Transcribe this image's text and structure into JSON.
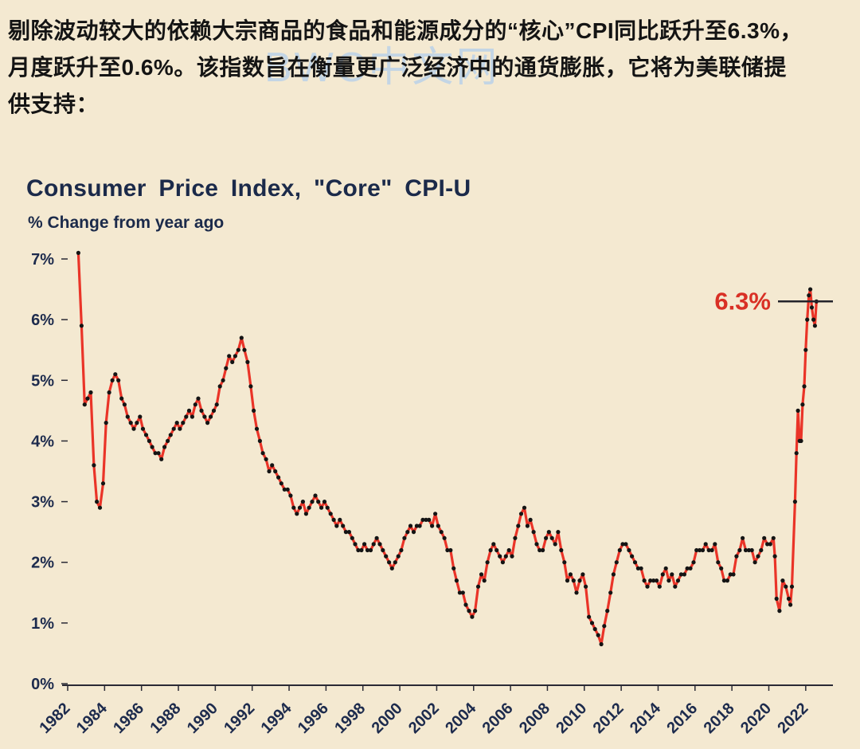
{
  "page": {
    "background": "#f4e9d1"
  },
  "intro": {
    "lines": [
      "剔除波动较大的依赖大宗商品的食品和能源成分的“核心”CPI同比跃升至6.3%，",
      "月度跃升至0.6%。该指数旨在衡量更广泛经济中的通货膨胀，它将为美联储提",
      "供支持："
    ]
  },
  "watermark": {
    "text": "BWC中文网",
    "color": "#a9cbf0"
  },
  "chart_data": {
    "type": "line",
    "title": "Consumer Price Index, \"Core\" CPI-U",
    "subtitle": "% Change from year ago",
    "x_domain": [
      1982,
      2023
    ],
    "ylim": [
      0,
      7
    ],
    "y_ticks": [
      "0%",
      "1%",
      "2%",
      "3%",
      "4%",
      "5%",
      "6%",
      "7%"
    ],
    "x_ticks": [
      1982,
      1984,
      1986,
      1988,
      1990,
      1992,
      1994,
      1996,
      1998,
      2000,
      2002,
      2004,
      2006,
      2008,
      2010,
      2012,
      2014,
      2016,
      2018,
      2020,
      2022
    ],
    "grid": false,
    "legend": "none",
    "line_color": "#ea3428",
    "marker_color": "#141414",
    "axis_color": "#2a2a35",
    "axis_label_color": "#1d2b4d",
    "annotation": {
      "text": "6.3%",
      "value": 6.3,
      "color": "#d93025"
    },
    "series": [
      {
        "name": "Core CPI, % change from year ago",
        "points": [
          [
            1982.58,
            7.1
          ],
          [
            1982.75,
            5.9
          ],
          [
            1982.92,
            4.6
          ],
          [
            1983.08,
            4.7
          ],
          [
            1983.25,
            4.8
          ],
          [
            1983.42,
            3.6
          ],
          [
            1983.58,
            3.0
          ],
          [
            1983.75,
            2.9
          ],
          [
            1983.92,
            3.3
          ],
          [
            1984.08,
            4.3
          ],
          [
            1984.25,
            4.8
          ],
          [
            1984.42,
            5.0
          ],
          [
            1984.58,
            5.1
          ],
          [
            1984.75,
            5.0
          ],
          [
            1984.92,
            4.7
          ],
          [
            1985.08,
            4.6
          ],
          [
            1985.25,
            4.4
          ],
          [
            1985.42,
            4.3
          ],
          [
            1985.58,
            4.2
          ],
          [
            1985.75,
            4.3
          ],
          [
            1985.92,
            4.4
          ],
          [
            1986.08,
            4.2
          ],
          [
            1986.25,
            4.1
          ],
          [
            1986.42,
            4.0
          ],
          [
            1986.58,
            3.9
          ],
          [
            1986.75,
            3.8
          ],
          [
            1986.92,
            3.8
          ],
          [
            1987.08,
            3.7
          ],
          [
            1987.25,
            3.9
          ],
          [
            1987.42,
            4.0
          ],
          [
            1987.58,
            4.1
          ],
          [
            1987.75,
            4.2
          ],
          [
            1987.92,
            4.3
          ],
          [
            1988.08,
            4.2
          ],
          [
            1988.25,
            4.3
          ],
          [
            1988.42,
            4.4
          ],
          [
            1988.58,
            4.5
          ],
          [
            1988.75,
            4.4
          ],
          [
            1988.92,
            4.6
          ],
          [
            1989.08,
            4.7
          ],
          [
            1989.25,
            4.5
          ],
          [
            1989.42,
            4.4
          ],
          [
            1989.58,
            4.3
          ],
          [
            1989.75,
            4.4
          ],
          [
            1989.92,
            4.5
          ],
          [
            1990.08,
            4.6
          ],
          [
            1990.25,
            4.9
          ],
          [
            1990.42,
            5.0
          ],
          [
            1990.58,
            5.2
          ],
          [
            1990.75,
            5.4
          ],
          [
            1990.92,
            5.3
          ],
          [
            1991.08,
            5.4
          ],
          [
            1991.25,
            5.5
          ],
          [
            1991.42,
            5.7
          ],
          [
            1991.58,
            5.5
          ],
          [
            1991.75,
            5.3
          ],
          [
            1991.92,
            4.9
          ],
          [
            1992.08,
            4.5
          ],
          [
            1992.25,
            4.2
          ],
          [
            1992.42,
            4.0
          ],
          [
            1992.58,
            3.8
          ],
          [
            1992.75,
            3.7
          ],
          [
            1992.92,
            3.5
          ],
          [
            1993.08,
            3.6
          ],
          [
            1993.25,
            3.5
          ],
          [
            1993.42,
            3.4
          ],
          [
            1993.58,
            3.3
          ],
          [
            1993.75,
            3.2
          ],
          [
            1993.92,
            3.2
          ],
          [
            1994.08,
            3.1
          ],
          [
            1994.25,
            2.9
          ],
          [
            1994.42,
            2.8
          ],
          [
            1994.58,
            2.9
          ],
          [
            1994.75,
            3.0
          ],
          [
            1994.92,
            2.8
          ],
          [
            1995.08,
            2.9
          ],
          [
            1995.25,
            3.0
          ],
          [
            1995.42,
            3.1
          ],
          [
            1995.58,
            3.0
          ],
          [
            1995.75,
            2.9
          ],
          [
            1995.92,
            3.0
          ],
          [
            1996.08,
            2.9
          ],
          [
            1996.25,
            2.8
          ],
          [
            1996.42,
            2.7
          ],
          [
            1996.58,
            2.6
          ],
          [
            1996.75,
            2.7
          ],
          [
            1996.92,
            2.6
          ],
          [
            1997.08,
            2.5
          ],
          [
            1997.25,
            2.5
          ],
          [
            1997.42,
            2.4
          ],
          [
            1997.58,
            2.3
          ],
          [
            1997.75,
            2.2
          ],
          [
            1997.92,
            2.2
          ],
          [
            1998.08,
            2.3
          ],
          [
            1998.25,
            2.2
          ],
          [
            1998.42,
            2.2
          ],
          [
            1998.58,
            2.3
          ],
          [
            1998.75,
            2.4
          ],
          [
            1998.92,
            2.3
          ],
          [
            1999.08,
            2.2
          ],
          [
            1999.25,
            2.1
          ],
          [
            1999.42,
            2.0
          ],
          [
            1999.58,
            1.9
          ],
          [
            1999.75,
            2.0
          ],
          [
            1999.92,
            2.1
          ],
          [
            2000.08,
            2.2
          ],
          [
            2000.25,
            2.4
          ],
          [
            2000.42,
            2.5
          ],
          [
            2000.58,
            2.6
          ],
          [
            2000.75,
            2.5
          ],
          [
            2000.92,
            2.6
          ],
          [
            2001.08,
            2.6
          ],
          [
            2001.25,
            2.7
          ],
          [
            2001.42,
            2.7
          ],
          [
            2001.58,
            2.7
          ],
          [
            2001.75,
            2.6
          ],
          [
            2001.92,
            2.8
          ],
          [
            2002.08,
            2.6
          ],
          [
            2002.25,
            2.5
          ],
          [
            2002.42,
            2.4
          ],
          [
            2002.58,
            2.2
          ],
          [
            2002.75,
            2.2
          ],
          [
            2002.92,
            1.9
          ],
          [
            2003.08,
            1.7
          ],
          [
            2003.25,
            1.5
          ],
          [
            2003.42,
            1.5
          ],
          [
            2003.58,
            1.3
          ],
          [
            2003.75,
            1.2
          ],
          [
            2003.92,
            1.1
          ],
          [
            2004.08,
            1.2
          ],
          [
            2004.25,
            1.6
          ],
          [
            2004.42,
            1.8
          ],
          [
            2004.58,
            1.7
          ],
          [
            2004.75,
            2.0
          ],
          [
            2004.92,
            2.2
          ],
          [
            2005.08,
            2.3
          ],
          [
            2005.25,
            2.2
          ],
          [
            2005.42,
            2.1
          ],
          [
            2005.58,
            2.0
          ],
          [
            2005.75,
            2.1
          ],
          [
            2005.92,
            2.2
          ],
          [
            2006.08,
            2.1
          ],
          [
            2006.25,
            2.4
          ],
          [
            2006.42,
            2.6
          ],
          [
            2006.58,
            2.8
          ],
          [
            2006.75,
            2.9
          ],
          [
            2006.92,
            2.6
          ],
          [
            2007.08,
            2.7
          ],
          [
            2007.25,
            2.5
          ],
          [
            2007.42,
            2.3
          ],
          [
            2007.58,
            2.2
          ],
          [
            2007.75,
            2.2
          ],
          [
            2007.92,
            2.4
          ],
          [
            2008.08,
            2.5
          ],
          [
            2008.25,
            2.4
          ],
          [
            2008.42,
            2.3
          ],
          [
            2008.58,
            2.5
          ],
          [
            2008.75,
            2.2
          ],
          [
            2008.92,
            2.0
          ],
          [
            2009.08,
            1.7
          ],
          [
            2009.25,
            1.8
          ],
          [
            2009.42,
            1.7
          ],
          [
            2009.58,
            1.5
          ],
          [
            2009.75,
            1.7
          ],
          [
            2009.92,
            1.8
          ],
          [
            2010.08,
            1.6
          ],
          [
            2010.25,
            1.1
          ],
          [
            2010.42,
            1.0
          ],
          [
            2010.58,
            0.9
          ],
          [
            2010.75,
            0.8
          ],
          [
            2010.92,
            0.65
          ],
          [
            2011.08,
            0.95
          ],
          [
            2011.25,
            1.2
          ],
          [
            2011.42,
            1.5
          ],
          [
            2011.58,
            1.8
          ],
          [
            2011.75,
            2.0
          ],
          [
            2011.92,
            2.2
          ],
          [
            2012.08,
            2.3
          ],
          [
            2012.25,
            2.3
          ],
          [
            2012.42,
            2.2
          ],
          [
            2012.58,
            2.1
          ],
          [
            2012.75,
            2.0
          ],
          [
            2012.92,
            1.9
          ],
          [
            2013.08,
            1.9
          ],
          [
            2013.25,
            1.7
          ],
          [
            2013.42,
            1.6
          ],
          [
            2013.58,
            1.7
          ],
          [
            2013.75,
            1.7
          ],
          [
            2013.92,
            1.7
          ],
          [
            2014.08,
            1.6
          ],
          [
            2014.25,
            1.8
          ],
          [
            2014.42,
            1.9
          ],
          [
            2014.58,
            1.7
          ],
          [
            2014.75,
            1.8
          ],
          [
            2014.92,
            1.6
          ],
          [
            2015.08,
            1.7
          ],
          [
            2015.25,
            1.8
          ],
          [
            2015.42,
            1.8
          ],
          [
            2015.58,
            1.9
          ],
          [
            2015.75,
            1.9
          ],
          [
            2015.92,
            2.0
          ],
          [
            2016.08,
            2.2
          ],
          [
            2016.25,
            2.2
          ],
          [
            2016.42,
            2.2
          ],
          [
            2016.58,
            2.3
          ],
          [
            2016.75,
            2.2
          ],
          [
            2016.92,
            2.2
          ],
          [
            2017.08,
            2.3
          ],
          [
            2017.25,
            2.0
          ],
          [
            2017.42,
            1.9
          ],
          [
            2017.58,
            1.7
          ],
          [
            2017.75,
            1.7
          ],
          [
            2017.92,
            1.8
          ],
          [
            2018.08,
            1.8
          ],
          [
            2018.25,
            2.1
          ],
          [
            2018.42,
            2.2
          ],
          [
            2018.58,
            2.4
          ],
          [
            2018.75,
            2.2
          ],
          [
            2018.92,
            2.2
          ],
          [
            2019.08,
            2.2
          ],
          [
            2019.25,
            2.0
          ],
          [
            2019.42,
            2.1
          ],
          [
            2019.58,
            2.2
          ],
          [
            2019.75,
            2.4
          ],
          [
            2019.92,
            2.3
          ],
          [
            2020.08,
            2.3
          ],
          [
            2020.25,
            2.4
          ],
          [
            2020.33,
            2.1
          ],
          [
            2020.42,
            1.4
          ],
          [
            2020.58,
            1.2
          ],
          [
            2020.75,
            1.7
          ],
          [
            2020.92,
            1.6
          ],
          [
            2021.08,
            1.4
          ],
          [
            2021.17,
            1.3
          ],
          [
            2021.25,
            1.6
          ],
          [
            2021.42,
            3.0
          ],
          [
            2021.5,
            3.8
          ],
          [
            2021.58,
            4.5
          ],
          [
            2021.67,
            4.0
          ],
          [
            2021.75,
            4.0
          ],
          [
            2021.83,
            4.6
          ],
          [
            2021.92,
            4.9
          ],
          [
            2022.0,
            5.5
          ],
          [
            2022.08,
            6.0
          ],
          [
            2022.17,
            6.4
          ],
          [
            2022.25,
            6.5
          ],
          [
            2022.33,
            6.2
          ],
          [
            2022.42,
            6.0
          ],
          [
            2022.5,
            5.9
          ],
          [
            2022.58,
            6.3
          ]
        ]
      }
    ]
  }
}
